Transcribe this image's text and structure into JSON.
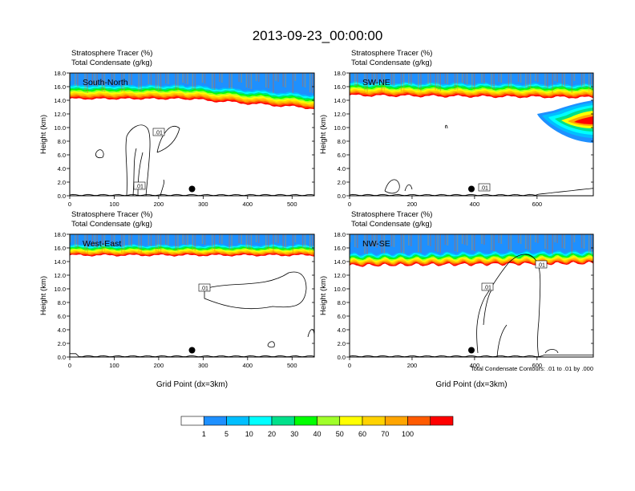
{
  "figure_title": "2013-09-23_00:00:00",
  "colorbar": {
    "labels": [
      "1",
      "5",
      "10",
      "20",
      "30",
      "40",
      "50",
      "60",
      "70",
      "100"
    ],
    "colors": [
      "#ffffff",
      "#1e90ff",
      "#00bfff",
      "#00ffff",
      "#00e08a",
      "#00ff00",
      "#a0ff2a",
      "#ffff00",
      "#ffd200",
      "#ffa500",
      "#ff5a00",
      "#ff0000"
    ]
  },
  "contour_note": "Total Condensate Contours: .01 to .01 by .000",
  "chart_data": [
    {
      "type": "contour",
      "panel_label": "South-North",
      "title_line1": "Stratosphere Tracer   (%)",
      "title_line2": "Total Condensate   (g/kg)",
      "ylabel": "Height (km)",
      "xlabel": "",
      "xlim": [
        0,
        550
      ],
      "ylim": [
        0,
        18
      ],
      "xticks": [
        "0",
        "100",
        "200",
        "300",
        "400",
        "500"
      ],
      "yticks": [
        "0.0",
        "2.0",
        "4.0",
        "6.0",
        "8.0",
        "10.0",
        "12.0",
        "14.0",
        "16.0",
        "18.0"
      ],
      "contour_labels": [
        ".01",
        ".01"
      ],
      "marker_x": 275,
      "marker_y": 1.0
    },
    {
      "type": "contour",
      "panel_label": "SW-NE",
      "title_line1": "Stratosphere Tracer   (%)",
      "title_line2": "Total Condensate   (g/kg)",
      "ylabel": "Height (km)",
      "xlabel": "",
      "xlim": [
        0,
        780
      ],
      "ylim": [
        0,
        18
      ],
      "xticks": [
        "0",
        "200",
        "400",
        "600"
      ],
      "yticks": [
        "0.0",
        "2.0",
        "4.0",
        "6.0",
        "8.0",
        "10.0",
        "12.0",
        "14.0",
        "16.0",
        "18.0"
      ],
      "contour_labels": [
        ".01"
      ],
      "marker_x": 390,
      "marker_y": 1.0
    },
    {
      "type": "contour",
      "panel_label": "West-East",
      "title_line1": "Stratosphere Tracer   (%)",
      "title_line2": "Total Condensate   (g/kg)",
      "ylabel": "Height (km)",
      "xlabel": "Grid Point (dx=3km)",
      "xlim": [
        0,
        550
      ],
      "ylim": [
        0,
        18
      ],
      "xticks": [
        "0",
        "100",
        "200",
        "300",
        "400",
        "500"
      ],
      "yticks": [
        "0.0",
        "2.0",
        "4.0",
        "6.0",
        "8.0",
        "10.0",
        "12.0",
        "14.0",
        "16.0",
        "18.0"
      ],
      "contour_labels": [
        ".01"
      ],
      "marker_x": 275,
      "marker_y": 1.0
    },
    {
      "type": "contour",
      "panel_label": "NW-SE",
      "title_line1": "Stratosphere Tracer   (%)",
      "title_line2": "Total Condensate   (g/kg)",
      "ylabel": "Height (km)",
      "xlabel": "Grid Point (dx=3km)",
      "xlim": [
        0,
        780
      ],
      "ylim": [
        0,
        18
      ],
      "xticks": [
        "0",
        "200",
        "400",
        "600"
      ],
      "yticks": [
        "0.0",
        "2.0",
        "4.0",
        "6.0",
        "8.0",
        "10.0",
        "12.0",
        "14.0",
        "16.0",
        "18.0"
      ],
      "contour_labels": [
        ".01",
        ".01"
      ],
      "marker_x": 390,
      "marker_y": 1.0
    }
  ]
}
